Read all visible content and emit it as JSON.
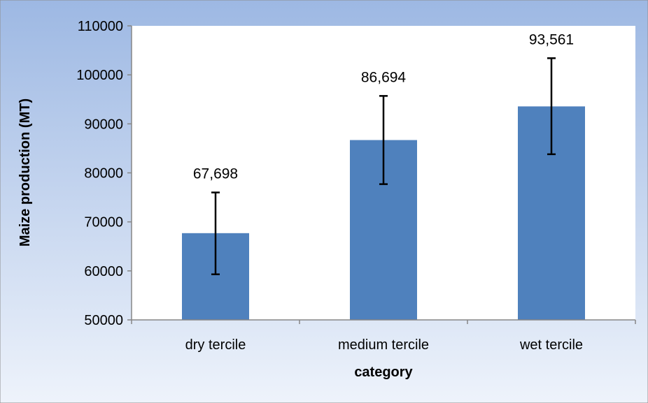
{
  "chart_data": {
    "type": "bar",
    "title": "",
    "xlabel": "category",
    "ylabel": "Maize production (MT)",
    "categories": [
      "dry tercile",
      "medium tercile",
      "wet tercile"
    ],
    "series": [
      {
        "values": [
          67698,
          86694,
          93561
        ],
        "data_labels": [
          "67,698",
          "86,694",
          "93,561"
        ],
        "error_low": [
          59300,
          77700,
          83800
        ],
        "error_high": [
          76000,
          95700,
          103400
        ],
        "color": "#4f81bd"
      }
    ],
    "ylim": [
      50000,
      110000
    ],
    "yticks": [
      50000,
      60000,
      70000,
      80000,
      90000,
      100000,
      110000
    ],
    "ytick_labels": [
      "50000",
      "60000",
      "70000",
      "80000",
      "90000",
      "100000",
      "110000"
    ],
    "grid": false,
    "legend": "none",
    "colors": {
      "background_gradient_top": "#9db8e3",
      "background_gradient_bottom": "#eef3fb",
      "plot_area": "#ffffff",
      "error_bar": "#000000"
    }
  }
}
